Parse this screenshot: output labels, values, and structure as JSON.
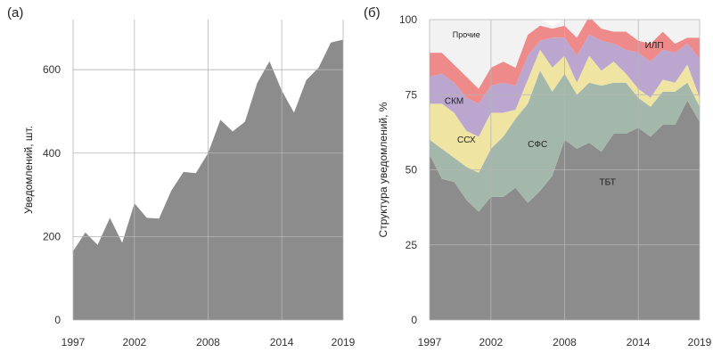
{
  "chart_data": [
    {
      "type": "area",
      "panel_label": "(а)",
      "ylabel": "Уведомлений, шт.",
      "xlabel": "",
      "xlim": [
        1997,
        2019
      ],
      "ylim": [
        0,
        720
      ],
      "xticks": [
        "1997",
        "2002",
        "2008",
        "2014",
        "2019"
      ],
      "yticks": [
        "0",
        "200",
        "400",
        "600"
      ],
      "grid": true,
      "x": [
        1997,
        1998,
        1999,
        2000,
        2001,
        2002,
        2003,
        2004,
        2005,
        2006,
        2007,
        2008,
        2009,
        2010,
        2011,
        2012,
        2013,
        2014,
        2015,
        2016,
        2017,
        2018,
        2019
      ],
      "values": [
        165,
        210,
        180,
        245,
        185,
        280,
        245,
        243,
        310,
        355,
        352,
        400,
        480,
        452,
        475,
        568,
        620,
        550,
        497,
        575,
        605,
        665,
        672
      ],
      "fill_color": "#8c8c8c"
    },
    {
      "type": "area",
      "stacked": true,
      "panel_label": "(б)",
      "ylabel": "Структура уведомлений, %",
      "xlabel": "",
      "xlim": [
        1997,
        2019
      ],
      "ylim": [
        0,
        100
      ],
      "xticks": [
        "1997",
        "2002",
        "2008",
        "2014",
        "2019"
      ],
      "yticks": [
        "0",
        "25",
        "50",
        "75",
        "100"
      ],
      "grid": true,
      "x": [
        1997,
        1998,
        1999,
        2000,
        2001,
        2002,
        2003,
        2004,
        2005,
        2006,
        2007,
        2008,
        2009,
        2010,
        2011,
        2012,
        2013,
        2014,
        2015,
        2016,
        2017,
        2018,
        2019
      ],
      "series": [
        {
          "name": "ТБТ",
          "color": "#8c8c8c",
          "values": [
            55,
            47,
            46,
            40,
            36,
            41,
            41,
            44,
            39,
            43,
            48,
            60,
            57,
            59,
            56,
            62,
            62,
            64,
            61,
            65,
            65,
            73,
            66
          ]
        },
        {
          "name": "СФС",
          "color": "#a3b8aa",
          "values": [
            5,
            10,
            8,
            11,
            13,
            16,
            20,
            23,
            33,
            40,
            28,
            22,
            18,
            20,
            22,
            17,
            17,
            10,
            10,
            11,
            11,
            6,
            5
          ]
        },
        {
          "name": "ССХ",
          "color": "#f0e4a2",
          "values": [
            12,
            15,
            15,
            12,
            12,
            12,
            8,
            3,
            8,
            7,
            8,
            6,
            4,
            9,
            5,
            7,
            3,
            3,
            3,
            4,
            3,
            6,
            3
          ]
        },
        {
          "name": "СКМ",
          "color": "#bba6cf",
          "values": [
            9,
            10,
            10,
            11,
            11,
            9,
            10,
            8,
            8,
            3,
            10,
            6,
            9,
            7,
            10,
            6,
            8,
            12,
            12,
            10,
            10,
            7,
            13
          ]
        },
        {
          "name": "ИЛП",
          "color": "#ee8a8a",
          "values": [
            8,
            7,
            6,
            7,
            5,
            6,
            7,
            6,
            7,
            5,
            3,
            4,
            6,
            6,
            4,
            4,
            6,
            4,
            6,
            6,
            3,
            2,
            7
          ]
        },
        {
          "name": "Прочие",
          "color": "#f2f2f2",
          "values": [
            11,
            11,
            15,
            19,
            23,
            16,
            14,
            16,
            5,
            2,
            1,
            2,
            6,
            -1,
            3,
            4,
            4,
            7,
            8,
            4,
            8,
            6,
            6
          ]
        }
      ]
    }
  ]
}
